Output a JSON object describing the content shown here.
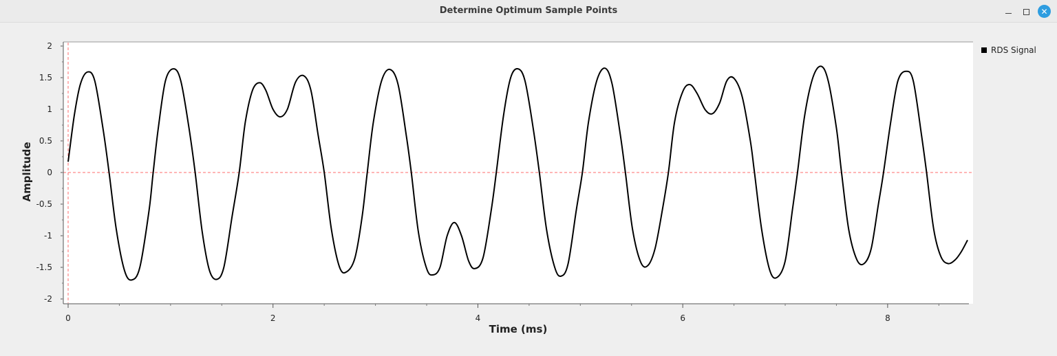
{
  "window": {
    "title": "Determine Optimum Sample Points"
  },
  "chart_data": {
    "type": "line",
    "xlabel": "Time (ms)",
    "ylabel": "Amplitude",
    "xlim": [
      0,
      8.78
    ],
    "ylim": [
      -2,
      2
    ],
    "x_ticks": [
      0,
      2,
      4,
      6,
      8
    ],
    "y_ticks": [
      2,
      1.5,
      1,
      0.5,
      0,
      -0.5,
      -1,
      -1.5,
      -2
    ],
    "legend_position": "top-right",
    "reference_lines": {
      "x": 0,
      "y": 0,
      "color": "#ff6b6b"
    },
    "series": [
      {
        "name": "RDS Signal",
        "color": "#000000",
        "points": [
          [
            0.0,
            0.17
          ],
          [
            0.06,
            0.9
          ],
          [
            0.12,
            1.4
          ],
          [
            0.19,
            1.59
          ],
          [
            0.26,
            1.45
          ],
          [
            0.34,
            0.7
          ],
          [
            0.4,
            0.0
          ],
          [
            0.47,
            -0.9
          ],
          [
            0.55,
            -1.55
          ],
          [
            0.62,
            -1.7
          ],
          [
            0.7,
            -1.5
          ],
          [
            0.79,
            -0.6
          ],
          [
            0.83,
            0.0
          ],
          [
            0.88,
            0.7
          ],
          [
            0.95,
            1.45
          ],
          [
            1.03,
            1.64
          ],
          [
            1.1,
            1.45
          ],
          [
            1.18,
            0.7
          ],
          [
            1.24,
            0.0
          ],
          [
            1.31,
            -0.95
          ],
          [
            1.38,
            -1.55
          ],
          [
            1.45,
            -1.69
          ],
          [
            1.52,
            -1.5
          ],
          [
            1.6,
            -0.7
          ],
          [
            1.67,
            0.0
          ],
          [
            1.73,
            0.8
          ],
          [
            1.8,
            1.3
          ],
          [
            1.87,
            1.42
          ],
          [
            1.93,
            1.3
          ],
          [
            2.0,
            1.0
          ],
          [
            2.07,
            0.88
          ],
          [
            2.14,
            1.0
          ],
          [
            2.22,
            1.43
          ],
          [
            2.3,
            1.53
          ],
          [
            2.37,
            1.3
          ],
          [
            2.44,
            0.6
          ],
          [
            2.5,
            0.0
          ],
          [
            2.57,
            -0.9
          ],
          [
            2.65,
            -1.5
          ],
          [
            2.72,
            -1.57
          ],
          [
            2.8,
            -1.35
          ],
          [
            2.87,
            -0.7
          ],
          [
            2.92,
            0.0
          ],
          [
            2.98,
            0.8
          ],
          [
            3.06,
            1.45
          ],
          [
            3.14,
            1.63
          ],
          [
            3.22,
            1.4
          ],
          [
            3.3,
            0.6
          ],
          [
            3.35,
            0.0
          ],
          [
            3.42,
            -0.95
          ],
          [
            3.5,
            -1.52
          ],
          [
            3.56,
            -1.62
          ],
          [
            3.63,
            -1.5
          ],
          [
            3.7,
            -1.0
          ],
          [
            3.77,
            -0.79
          ],
          [
            3.84,
            -1.0
          ],
          [
            3.91,
            -1.4
          ],
          [
            3.97,
            -1.52
          ],
          [
            4.05,
            -1.35
          ],
          [
            4.13,
            -0.6
          ],
          [
            4.18,
            0.0
          ],
          [
            4.25,
            0.9
          ],
          [
            4.32,
            1.5
          ],
          [
            4.39,
            1.64
          ],
          [
            4.46,
            1.45
          ],
          [
            4.54,
            0.7
          ],
          [
            4.6,
            0.0
          ],
          [
            4.67,
            -0.9
          ],
          [
            4.75,
            -1.5
          ],
          [
            4.81,
            -1.64
          ],
          [
            4.88,
            -1.45
          ],
          [
            4.96,
            -0.6
          ],
          [
            5.02,
            0.0
          ],
          [
            5.08,
            0.8
          ],
          [
            5.16,
            1.45
          ],
          [
            5.24,
            1.65
          ],
          [
            5.31,
            1.4
          ],
          [
            5.39,
            0.6
          ],
          [
            5.44,
            0.0
          ],
          [
            5.51,
            -0.9
          ],
          [
            5.59,
            -1.42
          ],
          [
            5.66,
            -1.47
          ],
          [
            5.73,
            -1.2
          ],
          [
            5.8,
            -0.6
          ],
          [
            5.86,
            0.0
          ],
          [
            5.92,
            0.8
          ],
          [
            6.0,
            1.28
          ],
          [
            6.07,
            1.39
          ],
          [
            6.14,
            1.25
          ],
          [
            6.22,
            0.99
          ],
          [
            6.29,
            0.93
          ],
          [
            6.36,
            1.1
          ],
          [
            6.43,
            1.45
          ],
          [
            6.5,
            1.49
          ],
          [
            6.58,
            1.2
          ],
          [
            6.66,
            0.5
          ],
          [
            6.7,
            0.0
          ],
          [
            6.77,
            -0.9
          ],
          [
            6.85,
            -1.55
          ],
          [
            6.92,
            -1.66
          ],
          [
            7.0,
            -1.4
          ],
          [
            7.07,
            -0.6
          ],
          [
            7.12,
            0.0
          ],
          [
            7.19,
            0.9
          ],
          [
            7.27,
            1.5
          ],
          [
            7.35,
            1.68
          ],
          [
            7.42,
            1.45
          ],
          [
            7.5,
            0.7
          ],
          [
            7.55,
            0.0
          ],
          [
            7.62,
            -0.9
          ],
          [
            7.7,
            -1.38
          ],
          [
            7.77,
            -1.44
          ],
          [
            7.84,
            -1.2
          ],
          [
            7.91,
            -0.5
          ],
          [
            7.96,
            0.0
          ],
          [
            8.03,
            0.8
          ],
          [
            8.1,
            1.45
          ],
          [
            8.18,
            1.6
          ],
          [
            8.25,
            1.45
          ],
          [
            8.33,
            0.6
          ],
          [
            8.38,
            0.0
          ],
          [
            8.45,
            -0.9
          ],
          [
            8.52,
            -1.33
          ],
          [
            8.59,
            -1.44
          ],
          [
            8.66,
            -1.38
          ],
          [
            8.72,
            -1.25
          ],
          [
            8.78,
            -1.07
          ]
        ]
      }
    ]
  }
}
